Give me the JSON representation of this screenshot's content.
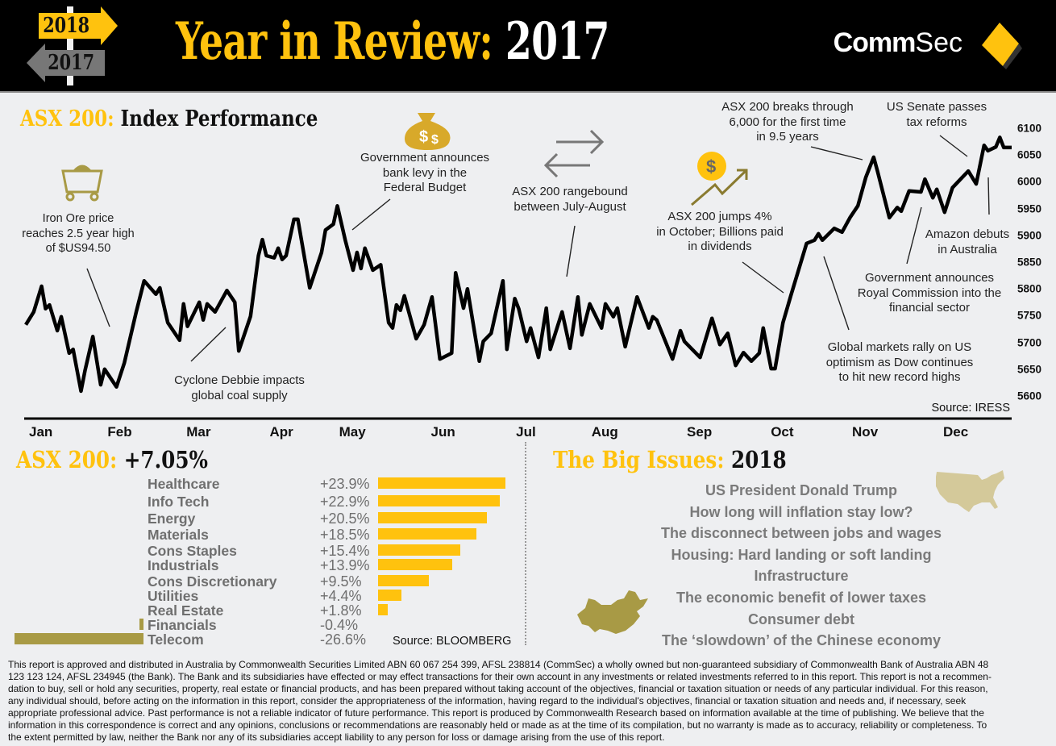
{
  "header": {
    "sign_top": "2018",
    "sign_bottom": "2017",
    "title_main": "Year in Review:",
    "title_year": "2017",
    "logo_bold": "Comm",
    "logo_light": "Sec"
  },
  "colors": {
    "accent": "#ffc20e",
    "negative": "#a89a45",
    "text_grey": "#6f6f6f",
    "background": "#eeeff1"
  },
  "index_chart": {
    "title_accent": "ASX 200:",
    "title_rest": "Index Performance",
    "source": "Source: IRESS",
    "annotations": {
      "iron_ore": [
        "Iron Ore price",
        "reaches 2.5 year high",
        "of $US94.50"
      ],
      "cyclone": [
        "Cyclone Debbie impacts",
        "global coal supply"
      ],
      "budget": [
        "Government announces",
        "bank levy in the",
        "Federal Budget"
      ],
      "rangebound": [
        "ASX 200 rangebound",
        "between July-August"
      ],
      "october": [
        "ASX 200 jumps 4%",
        "in October; Billions paid",
        "in dividends"
      ],
      "breaks_6000": [
        "ASX 200 breaks through",
        "6,000 for the first time",
        "in 9.5 years"
      ],
      "us_senate": [
        "US Senate passes",
        "tax reforms"
      ],
      "amazon": [
        "Amazon debuts",
        "in Australia"
      ],
      "royal_commission": [
        "Government announces",
        "Royal Commission into the",
        "financial sector"
      ],
      "global_markets": [
        "Global markets rally on US",
        "optimism as Dow continues",
        "to hit new record highs"
      ]
    }
  },
  "sectors": {
    "title_accent": "ASX 200:",
    "title_value": "+7.05%",
    "source": "Source: BLOOMBERG"
  },
  "big_issues": {
    "title_accent": "The Big Issues:",
    "title_year": "2018",
    "items": [
      "US President Donald Trump",
      "How long will inflation stay low?",
      "The disconnect between jobs and wages",
      "Housing: Hard landing or soft landing",
      "Infrastructure",
      "The economic benefit of lower taxes",
      "Consumer debt",
      "The ‘slowdown’ of the Chinese economy"
    ]
  },
  "footer": {
    "lines": [
      "This report is approved and distributed in Australia by Commonwealth Securities Limited ABN 60 067 254 399, AFSL 238814 (CommSec) a wholly owned but non-guaranteed subsidiary of Commonwealth Bank of Australia ABN 48",
      "123 123 124, AFSL 234945 (the Bank).  The Bank and its subsidiaries have effected or may effect transactions for their own account in any investments or related investments referred to in this report. This report is not a recommen-",
      "dation to buy, sell or hold any securities, property, real estate or financial products, and has been prepared without taking account of the objectives, financial or taxation situation or needs of any particular individual.  For this reason,",
      "any individual should, before acting on the information in this report, consider the appropriateness of the information, having regard to the individual's objectives, financial or taxation situation and needs and, if necessary, seek",
      "appropriate professional advice.  Past performance is not a reliable indicator of future performance. This report is produced by Commonwealth Research based on information available at the time of publishing.  We believe that the",
      "information in this correspondence is correct and any opinions, conclusions or recommendations are reasonably held or made as at the time of its compilation, but no warranty is made as to accuracy, reliability or completeness.  To",
      "the extent permitted by law, neither the Bank nor any of its subsidiaries accept liability to any person for loss or damage arising from the use of this report."
    ]
  },
  "chart_data": [
    {
      "type": "line",
      "title": "ASX 200: Index Performance",
      "xlabel": "",
      "ylabel": "",
      "x_unit": "trading day of 2017",
      "xlim": [
        0,
        250
      ],
      "ylim": [
        5600,
        6100
      ],
      "yticks": [
        5600,
        5650,
        5700,
        5750,
        5800,
        5850,
        5900,
        5950,
        6000,
        6050,
        6100
      ],
      "month_ticks": [
        {
          "label": "Jan",
          "x": 3
        },
        {
          "label": "Feb",
          "x": 23
        },
        {
          "label": "Mar",
          "x": 43
        },
        {
          "label": "Apr",
          "x": 64
        },
        {
          "label": "May",
          "x": 82
        },
        {
          "label": "Jun",
          "x": 105
        },
        {
          "label": "Jul",
          "x": 126
        },
        {
          "label": "Aug",
          "x": 146
        },
        {
          "label": "Sep",
          "x": 170
        },
        {
          "label": "Oct",
          "x": 191
        },
        {
          "label": "Nov",
          "x": 212
        },
        {
          "label": "Dec",
          "x": 235
        }
      ],
      "grid": false,
      "series": [
        {
          "name": "ASX 200",
          "points": [
            [
              0,
              5733
            ],
            [
              2,
              5757
            ],
            [
              4,
              5805
            ],
            [
              5,
              5763
            ],
            [
              6,
              5770
            ],
            [
              8,
              5722
            ],
            [
              9,
              5748
            ],
            [
              11,
              5680
            ],
            [
              12,
              5687
            ],
            [
              14,
              5609
            ],
            [
              15,
              5647
            ],
            [
              17,
              5711
            ],
            [
              19,
              5621
            ],
            [
              20,
              5650
            ],
            [
              23,
              5617
            ],
            [
              25,
              5662
            ],
            [
              28,
              5757
            ],
            [
              30,
              5815
            ],
            [
              33,
              5790
            ],
            [
              34,
              5802
            ],
            [
              36,
              5737
            ],
            [
              39,
              5704
            ],
            [
              40,
              5772
            ],
            [
              41,
              5730
            ],
            [
              44,
              5775
            ],
            [
              45,
              5742
            ],
            [
              46,
              5772
            ],
            [
              48,
              5757
            ],
            [
              51,
              5797
            ],
            [
              53,
              5775
            ],
            [
              54,
              5684
            ],
            [
              57,
              5749
            ],
            [
              59,
              5862
            ],
            [
              60,
              5892
            ],
            [
              61,
              5862
            ],
            [
              63,
              5858
            ],
            [
              64,
              5876
            ],
            [
              65,
              5855
            ],
            [
              66,
              5862
            ],
            [
              68,
              5930
            ],
            [
              69,
              5930
            ],
            [
              72,
              5802
            ],
            [
              75,
              5868
            ],
            [
              76,
              5910
            ],
            [
              78,
              5921
            ],
            [
              79,
              5955
            ],
            [
              81,
              5891
            ],
            [
              83,
              5835
            ],
            [
              84,
              5868
            ],
            [
              85,
              5838
            ],
            [
              86,
              5876
            ],
            [
              88,
              5835
            ],
            [
              90,
              5845
            ],
            [
              92,
              5737
            ],
            [
              93,
              5727
            ],
            [
              94,
              5770
            ],
            [
              95,
              5760
            ],
            [
              96,
              5787
            ],
            [
              99,
              5707
            ],
            [
              101,
              5733
            ],
            [
              103,
              5785
            ],
            [
              105,
              5669
            ],
            [
              108,
              5680
            ],
            [
              109,
              5830
            ],
            [
              111,
              5764
            ],
            [
              112,
              5800
            ],
            [
              115,
              5665
            ],
            [
              116,
              5702
            ],
            [
              118,
              5717
            ],
            [
              121,
              5815
            ],
            [
              122,
              5687
            ],
            [
              124,
              5782
            ],
            [
              125,
              5763
            ],
            [
              127,
              5702
            ],
            [
              128,
              5727
            ],
            [
              130,
              5672
            ],
            [
              132,
              5764
            ],
            [
              133,
              5687
            ],
            [
              136,
              5757
            ],
            [
              138,
              5689
            ],
            [
              140,
              5785
            ],
            [
              141,
              5714
            ],
            [
              143,
              5772
            ],
            [
              146,
              5727
            ],
            [
              147,
              5772
            ],
            [
              149,
              5748
            ],
            [
              150,
              5764
            ],
            [
              152,
              5692
            ],
            [
              155,
              5785
            ],
            [
              158,
              5727
            ],
            [
              159,
              5748
            ],
            [
              160,
              5742
            ],
            [
              164,
              5669
            ],
            [
              166,
              5722
            ],
            [
              167,
              5702
            ],
            [
              171,
              5672
            ],
            [
              174,
              5745
            ],
            [
              176,
              5696
            ],
            [
              178,
              5717
            ],
            [
              180,
              5657
            ],
            [
              182,
              5681
            ],
            [
              184,
              5665
            ],
            [
              186,
              5680
            ],
            [
              187,
              5727
            ],
            [
              189,
              5651
            ],
            [
              190,
              5651
            ],
            [
              192,
              5737
            ],
            [
              194,
              5787
            ],
            [
              198,
              5885
            ],
            [
              200,
              5891
            ],
            [
              201,
              5903
            ],
            [
              202,
              5891
            ],
            [
              205,
              5913
            ],
            [
              207,
              5906
            ],
            [
              209,
              5933
            ],
            [
              211,
              5955
            ],
            [
              213,
              6008
            ],
            [
              215,
              6046
            ],
            [
              216,
              6019
            ],
            [
              219,
              5933
            ],
            [
              221,
              5952
            ],
            [
              222,
              5945
            ],
            [
              224,
              5983
            ],
            [
              227,
              5981
            ],
            [
              228,
              6005
            ],
            [
              230,
              5970
            ],
            [
              231,
              5986
            ],
            [
              233,
              5943
            ],
            [
              235,
              5989
            ],
            [
              239,
              6020
            ],
            [
              241,
              5996
            ],
            [
              243,
              6068
            ],
            [
              244,
              6058
            ],
            [
              246,
              6065
            ],
            [
              247,
              6083
            ],
            [
              248,
              6064
            ],
            [
              250,
              6064
            ]
          ]
        }
      ]
    },
    {
      "type": "bar",
      "orientation": "horizontal",
      "title": "ASX 200: +7.05%",
      "unit": "%",
      "categories": [
        "Healthcare",
        "Info Tech",
        "Energy",
        "Materials",
        "Cons Staples",
        "Industrials",
        "Cons Discretionary",
        "Utilities",
        "Real Estate",
        "Financials",
        "Telecom"
      ],
      "values": [
        23.9,
        22.9,
        20.5,
        18.5,
        15.4,
        13.9,
        9.5,
        4.4,
        1.8,
        -0.4,
        -26.6
      ],
      "labels": [
        "+23.9%",
        "+22.9%",
        "+20.5%",
        "+18.5%",
        "+15.4%",
        "+13.9%",
        "+9.5%",
        "+4.4%",
        "+1.8%",
        "-0.4%",
        "-26.6%"
      ]
    }
  ]
}
